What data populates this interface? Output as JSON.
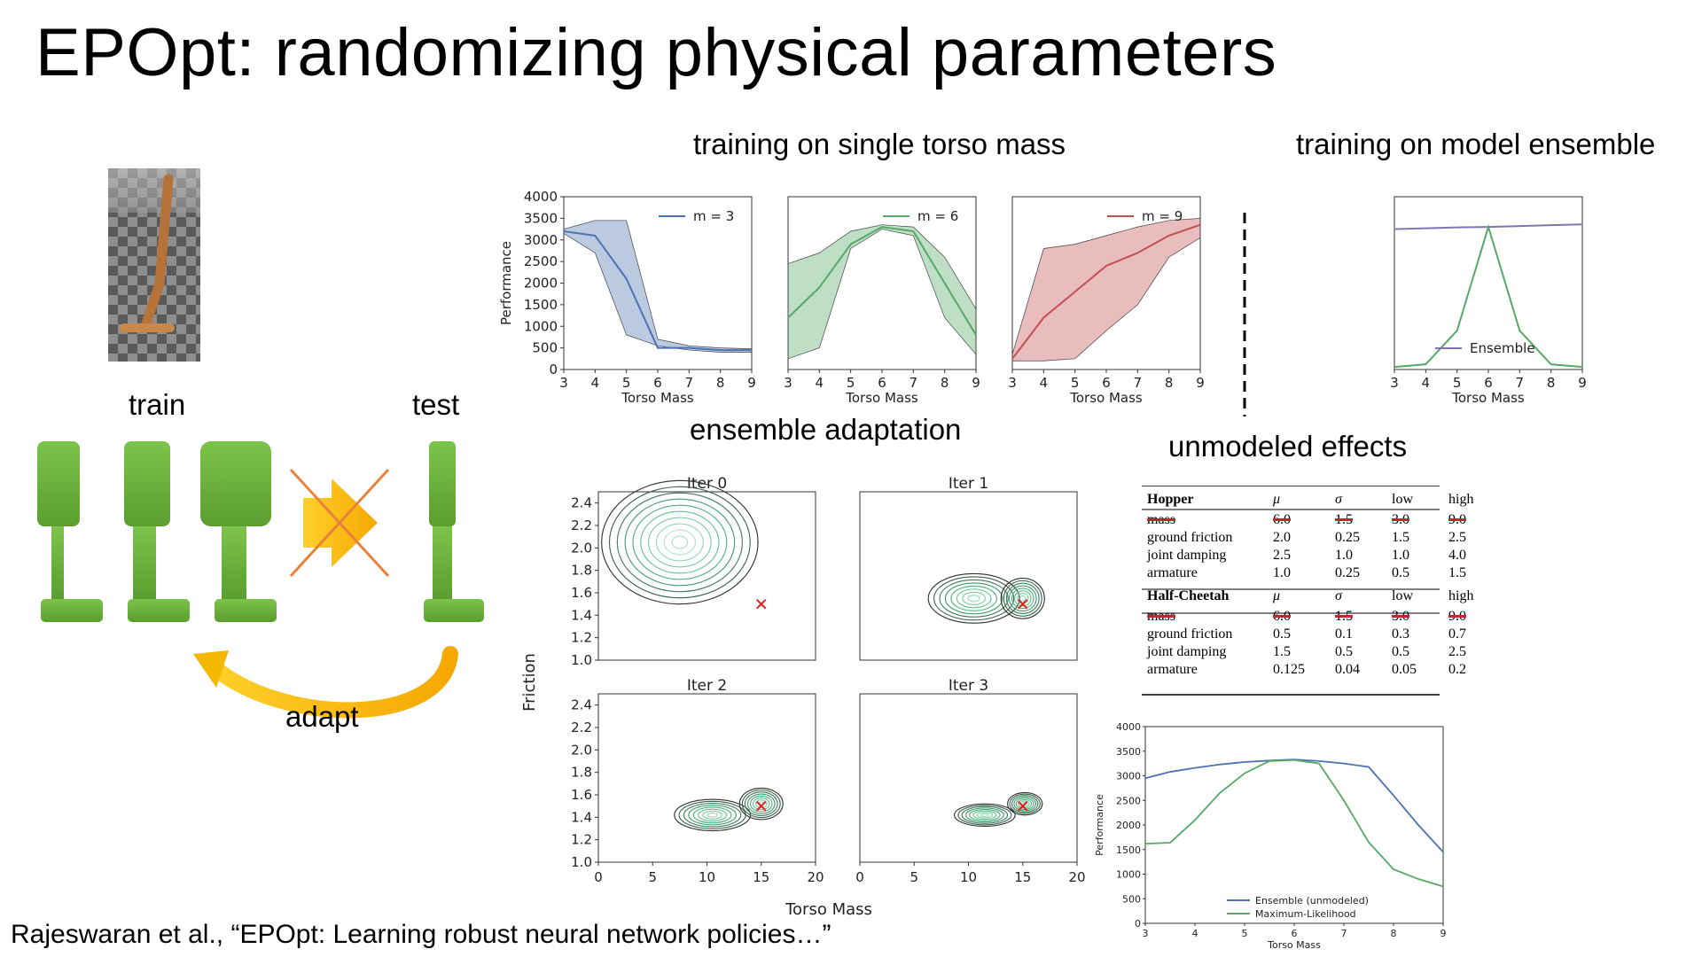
{
  "title": "EPOpt: randomizing physical parameters",
  "citation": "Rajeswaran et al., “EPOpt: Learning robust neural network policies…”",
  "left_panel": {
    "train_label": "train",
    "test_label": "test",
    "adapt_label": "adapt",
    "colors": {
      "robot": "#6db33f",
      "arrow": "#f5b800",
      "cross": "#e8823a"
    }
  },
  "headings": {
    "single_mass": "training on single torso mass",
    "ensemble": "training on model ensemble",
    "adaptation": "ensemble adaptation",
    "unmodeled": "unmodeled effects"
  },
  "chart_data": [
    {
      "type": "area",
      "id": "m3",
      "legend": "m = 3",
      "color": "#4c72b0",
      "x": [
        3,
        4,
        5,
        6,
        7,
        8,
        9
      ],
      "mean": [
        3200,
        3100,
        2100,
        500,
        500,
        450,
        450
      ],
      "upper": [
        3250,
        3450,
        3450,
        700,
        550,
        500,
        480
      ],
      "lower": [
        3150,
        2700,
        800,
        550,
        450,
        400,
        400
      ],
      "xlabel": "Torso Mass",
      "ylabel": "Performance",
      "ylim": [
        0,
        4000
      ],
      "yticks": [
        0,
        500,
        1000,
        1500,
        2000,
        2500,
        3000,
        3500,
        4000
      ],
      "xticks": [
        3,
        4,
        5,
        6,
        7,
        8,
        9
      ]
    },
    {
      "type": "area",
      "id": "m6",
      "legend": "m = 6",
      "color": "#55a868",
      "x": [
        3,
        4,
        5,
        6,
        7,
        8,
        9
      ],
      "mean": [
        1200,
        1900,
        2900,
        3300,
        3200,
        2000,
        800
      ],
      "upper": [
        2450,
        2700,
        3200,
        3350,
        3300,
        2600,
        1400
      ],
      "lower": [
        250,
        500,
        2800,
        3250,
        3100,
        1200,
        350
      ],
      "xlabel": "Torso Mass",
      "ylabel": "",
      "ylim": [
        0,
        4000
      ],
      "xticks": [
        3,
        4,
        5,
        6,
        7,
        8,
        9
      ]
    },
    {
      "type": "area",
      "id": "m9",
      "legend": "m = 9",
      "color": "#c44e52",
      "x": [
        3,
        4,
        5,
        6,
        7,
        8,
        9
      ],
      "mean": [
        250,
        1200,
        1800,
        2400,
        2700,
        3100,
        3350
      ],
      "upper": [
        350,
        2800,
        2900,
        3100,
        3300,
        3450,
        3500
      ],
      "lower": [
        200,
        200,
        250,
        900,
        1500,
        2600,
        3050
      ],
      "xlabel": "Torso Mass",
      "ylabel": "",
      "ylim": [
        0,
        4000
      ],
      "xticks": [
        3,
        4,
        5,
        6,
        7,
        8,
        9
      ]
    },
    {
      "type": "line",
      "id": "ensemble",
      "legend": "Ensemble",
      "x": [
        3,
        4,
        5,
        6,
        7,
        8,
        9
      ],
      "series": [
        {
          "name": "Ensemble",
          "color": "#8172b2",
          "values": [
            3250,
            3270,
            3290,
            3300,
            3320,
            3340,
            3360
          ]
        },
        {
          "color": "#55a868",
          "values": [
            60,
            120,
            900,
            3300,
            900,
            120,
            60
          ]
        }
      ],
      "xlabel": "Torso Mass",
      "ylim": [
        0,
        4000
      ],
      "xticks": [
        3,
        4,
        5,
        6,
        7,
        8,
        9
      ]
    },
    {
      "type": "contour",
      "id": "adaptation",
      "ylabel": "Friction",
      "xlabel": "Torso Mass",
      "xlim": [
        0,
        20
      ],
      "ylim": [
        1.0,
        2.5
      ],
      "xticks": [
        0,
        5,
        10,
        15,
        20
      ],
      "yticks": [
        1.0,
        1.2,
        1.4,
        1.6,
        1.8,
        2.0,
        2.2,
        2.4
      ],
      "true_param": [
        15,
        1.5
      ],
      "panels": [
        {
          "title": "Iter 0",
          "blobs": [
            {
              "cx": 7.5,
              "cy": 2.05,
              "rx": 7.2,
              "ry": 0.55
            }
          ]
        },
        {
          "title": "Iter 1",
          "blobs": [
            {
              "cx": 10.5,
              "cy": 1.55,
              "rx": 4.2,
              "ry": 0.22
            },
            {
              "cx": 15,
              "cy": 1.55,
              "rx": 2.0,
              "ry": 0.18
            }
          ]
        },
        {
          "title": "Iter 2",
          "blobs": [
            {
              "cx": 10.5,
              "cy": 1.42,
              "rx": 3.5,
              "ry": 0.14
            },
            {
              "cx": 15,
              "cy": 1.52,
              "rx": 2.0,
              "ry": 0.14
            }
          ]
        },
        {
          "title": "Iter 3",
          "blobs": [
            {
              "cx": 11.5,
              "cy": 1.42,
              "rx": 2.8,
              "ry": 0.1
            },
            {
              "cx": 15.2,
              "cy": 1.52,
              "rx": 1.6,
              "ry": 0.1
            }
          ]
        }
      ]
    },
    {
      "type": "table",
      "id": "params",
      "columns": [
        "μ",
        "σ",
        "low",
        "high"
      ],
      "groups": [
        {
          "name": "Hopper",
          "rows": [
            [
              "mass",
              "6.0",
              "1.5",
              "3.0",
              "9.0"
            ],
            [
              "ground friction",
              "2.0",
              "0.25",
              "1.5",
              "2.5"
            ],
            [
              "joint damping",
              "2.5",
              "1.0",
              "1.0",
              "4.0"
            ],
            [
              "armature",
              "1.0",
              "0.25",
              "0.5",
              "1.5"
            ]
          ]
        },
        {
          "name": "Half-Cheetah",
          "rows": [
            [
              "mass",
              "6.0",
              "1.5",
              "3.0",
              "9.0"
            ],
            [
              "ground friction",
              "0.5",
              "0.1",
              "0.3",
              "0.7"
            ],
            [
              "joint damping",
              "1.5",
              "0.5",
              "0.5",
              "2.5"
            ],
            [
              "armature",
              "0.125",
              "0.04",
              "0.05",
              "0.2"
            ]
          ]
        }
      ],
      "struck_row": "mass"
    },
    {
      "type": "line",
      "id": "unmodeled",
      "x": [
        3,
        3.5,
        4,
        4.5,
        5,
        5.5,
        6,
        6.5,
        7,
        7.5,
        8,
        8.5,
        9
      ],
      "series": [
        {
          "name": "Ensemble (unmodeled)",
          "color": "#4c72b0",
          "values": [
            2950,
            3080,
            3160,
            3230,
            3280,
            3310,
            3330,
            3300,
            3250,
            3180,
            2600,
            2000,
            1450
          ]
        },
        {
          "name": "Maximum-Likelihood",
          "color": "#55a868",
          "values": [
            1620,
            1640,
            2100,
            2650,
            3050,
            3300,
            3320,
            3250,
            2500,
            1650,
            1100,
            900,
            750
          ]
        }
      ],
      "xlabel": "Torso Mass",
      "ylabel": "Performance",
      "ylim": [
        0,
        4000
      ],
      "yticks": [
        0,
        500,
        1000,
        1500,
        2000,
        2500,
        3000,
        3500,
        4000
      ],
      "xticks": [
        3,
        4,
        5,
        6,
        7,
        8,
        9
      ]
    }
  ]
}
